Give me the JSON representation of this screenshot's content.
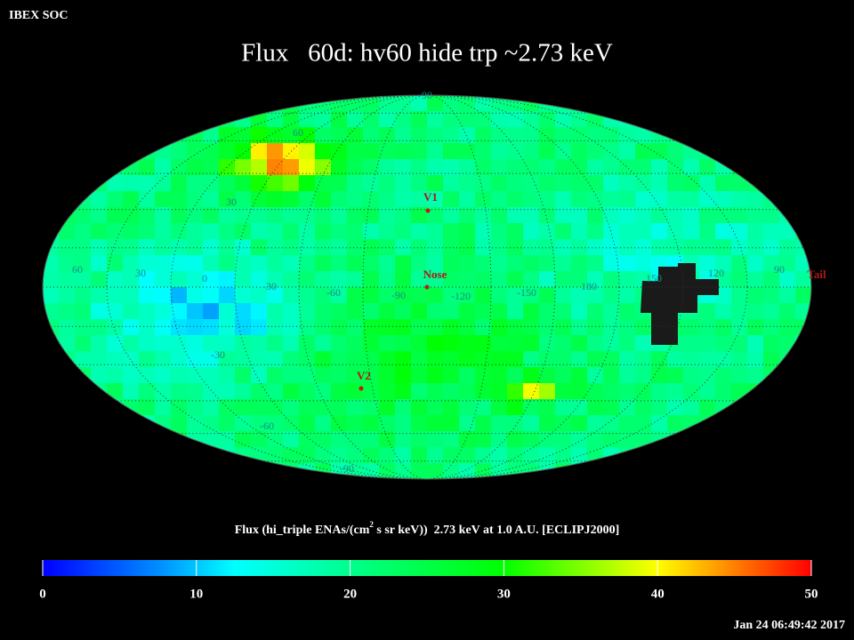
{
  "header": {
    "org": "IBEX SOC",
    "title": "Flux   60d: hv60 hide trp ~2.73 keV"
  },
  "map": {
    "lat_labels": [
      "90",
      "60",
      "30",
      "-30",
      "-60",
      "-90"
    ],
    "lon_labels": [
      "60",
      "30",
      "0",
      "-30",
      "-60",
      "-90",
      "-120",
      "-150",
      "180",
      "150",
      "120",
      "90"
    ],
    "markers": [
      "V1",
      "Nose",
      "V2",
      "Tail"
    ]
  },
  "colorbar": {
    "label_before": "Flux (hi_triple ENAs/(cm",
    "label_sup": "2",
    "label_after": " s sr keV))  2.73 keV at 1.0 A.U. [ECLIPJ2000]",
    "range": [
      0,
      50
    ],
    "ticks": [
      0,
      10,
      20,
      30,
      40,
      50
    ]
  },
  "timestamp": "Jan 24 06:49:42 2017"
}
